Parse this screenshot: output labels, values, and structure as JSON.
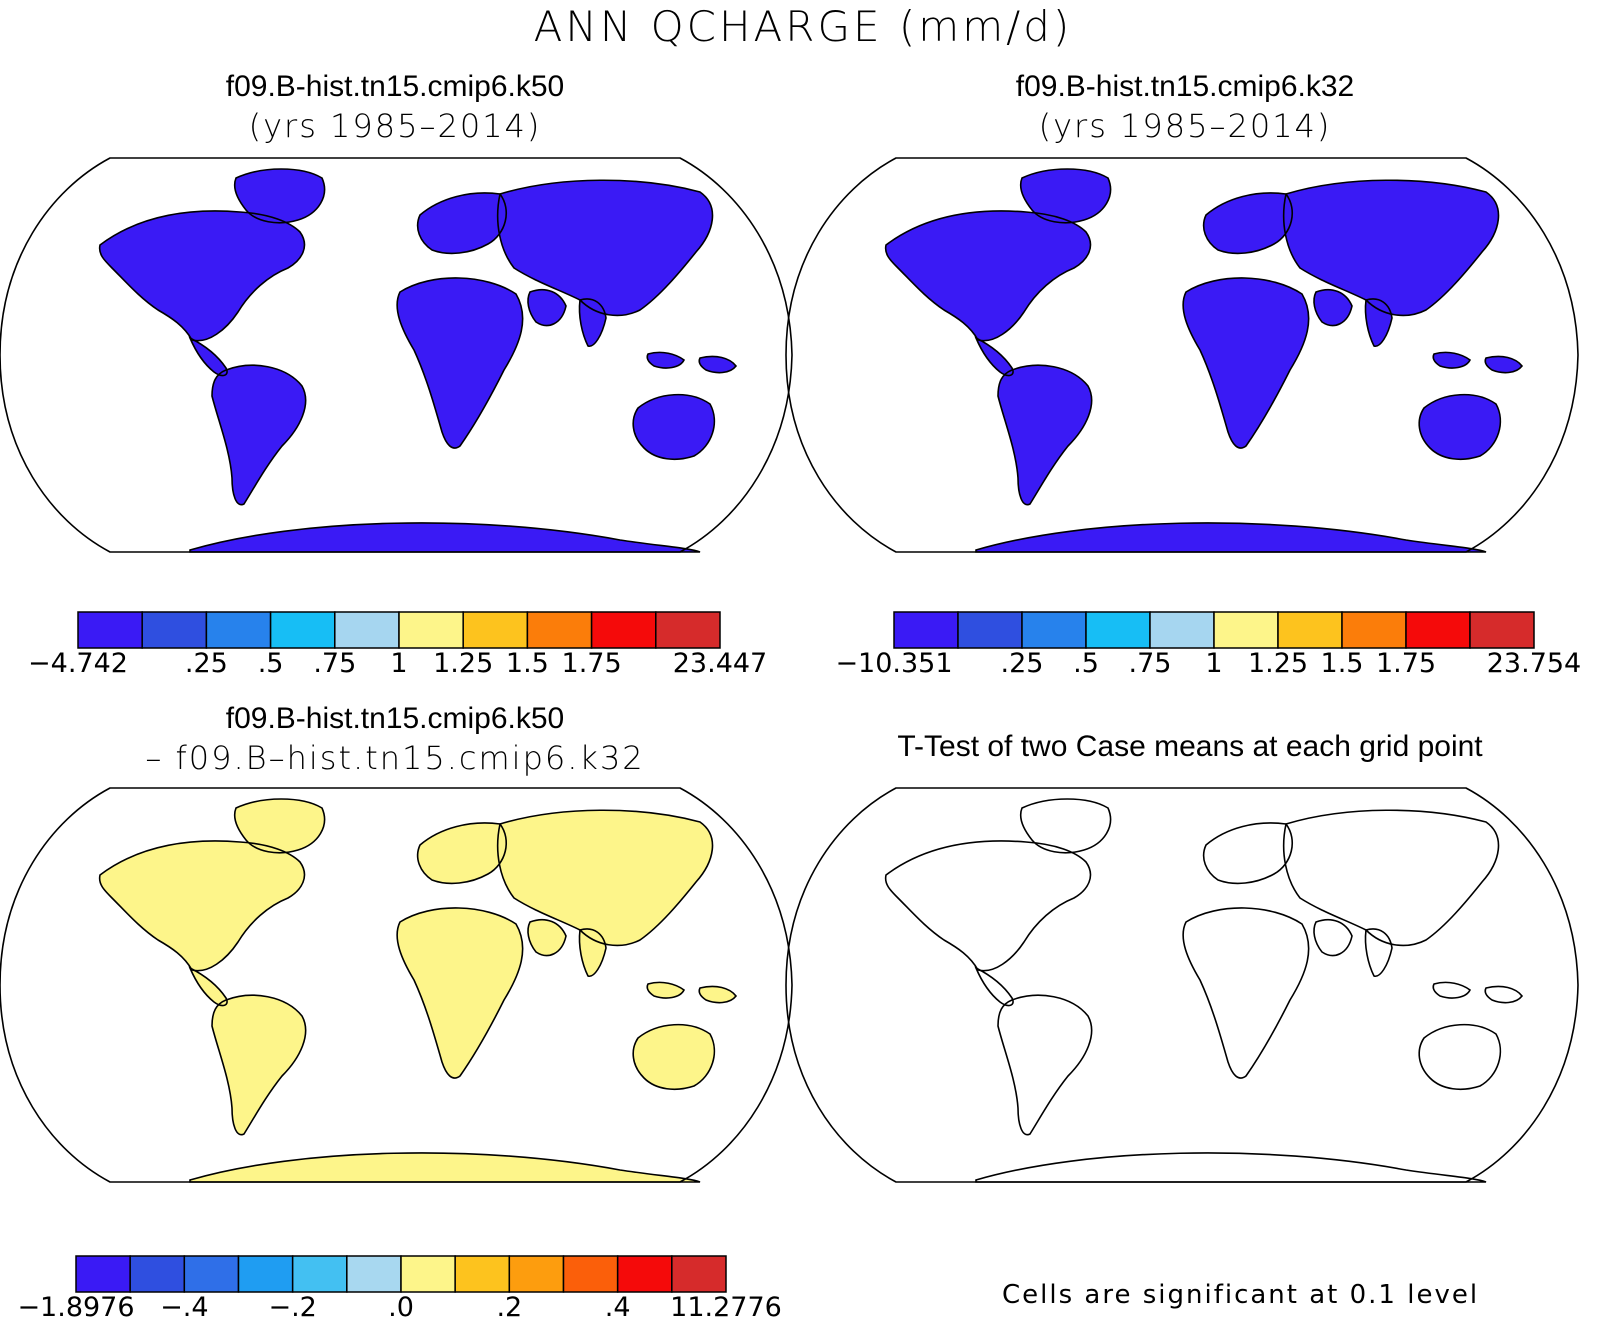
{
  "title": "ANN QCHARGE (mm/d)",
  "panels": [
    {
      "id": "k50",
      "line1": "f09.B-hist.tn15.cmip6.k50",
      "line2": "(yrs 1985–2014)"
    },
    {
      "id": "k32",
      "line1": "f09.B-hist.tn15.cmip6.k32",
      "line2": "(yrs 1985–2014)"
    },
    {
      "id": "diff",
      "line1": "f09.B-hist.tn15.cmip6.k50",
      "line2": "– f09.B–hist.tn15.cmip6.k32"
    },
    {
      "id": "ttest",
      "line1": "T-Test of two Case means at each grid point",
      "line2": ""
    }
  ],
  "footnote": "Cells are significant at 0.1 level",
  "colorbars": [
    {
      "panel": "k50",
      "colors": [
        "#3a1af5",
        "#2f4fe0",
        "#2782ec",
        "#17bef5",
        "#a6d6f0",
        "#fdf58a",
        "#fdc31e",
        "#fb7d0a",
        "#f50a0a",
        "#d62b2b"
      ],
      "tick_labels": [
        "−4.742",
        ".25",
        ".5",
        ".75",
        "1",
        "1.25",
        "1.5",
        "1.75",
        "23.447"
      ]
    },
    {
      "panel": "k32",
      "colors": [
        "#3a1af5",
        "#2f4fe0",
        "#2782ec",
        "#17bef5",
        "#a6d6f0",
        "#fdf58a",
        "#fdc31e",
        "#fb7d0a",
        "#f50a0a",
        "#d62b2b"
      ],
      "tick_labels": [
        "−10.351",
        ".25",
        ".5",
        ".75",
        "1",
        "1.25",
        "1.5",
        "1.75",
        "23.754"
      ]
    },
    {
      "panel": "diff",
      "colors": [
        "#3a1af5",
        "#2f4fe0",
        "#2f6fe8",
        "#1f9df2",
        "#43c0f2",
        "#a8d8f0",
        "#fdf58a",
        "#fdc31e",
        "#fd9d0e",
        "#fb5f0a",
        "#f50a0a",
        "#d62b2b"
      ],
      "tick_labels": [
        "−1.8976",
        "−.4",
        "−.2",
        ".0",
        ".2",
        ".4",
        "11.2776"
      ]
    }
  ],
  "legend": {
    "sequential_scale": [
      "#3a1af5",
      "#2f4fe0",
      "#2782ec",
      "#17bef5",
      "#a6d6f0",
      "#fdf58a",
      "#fdc31e",
      "#fb7d0a",
      "#f50a0a",
      "#d62b2b"
    ],
    "significance_color": "#f50a0a"
  }
}
